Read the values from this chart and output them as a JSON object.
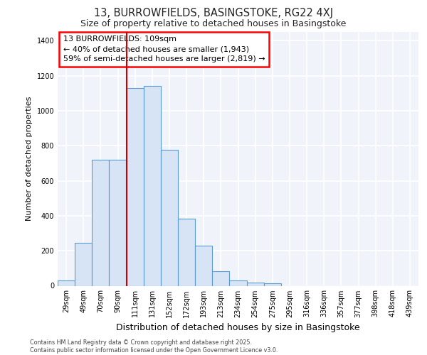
{
  "title1": "13, BURROWFIELDS, BASINGSTOKE, RG22 4XJ",
  "title2": "Size of property relative to detached houses in Basingstoke",
  "xlabel": "Distribution of detached houses by size in Basingstoke",
  "ylabel": "Number of detached properties",
  "categories": [
    "29sqm",
    "49sqm",
    "70sqm",
    "90sqm",
    "111sqm",
    "131sqm",
    "152sqm",
    "172sqm",
    "193sqm",
    "213sqm",
    "234sqm",
    "254sqm",
    "275sqm",
    "295sqm",
    "316sqm",
    "336sqm",
    "357sqm",
    "377sqm",
    "398sqm",
    "418sqm",
    "439sqm"
  ],
  "values": [
    30,
    245,
    720,
    720,
    1130,
    1140,
    775,
    385,
    230,
    85,
    30,
    20,
    15,
    0,
    0,
    0,
    0,
    0,
    0,
    0,
    0
  ],
  "bar_color": "#d6e4f5",
  "bar_edge_color": "#5b9bd5",
  "vline_color": "#cc0000",
  "vline_pos": 4,
  "annotation_text": "13 BURROWFIELDS: 109sqm\n← 40% of detached houses are smaller (1,943)\n59% of semi-detached houses are larger (2,819) →",
  "footer": "Contains HM Land Registry data © Crown copyright and database right 2025.\nContains public sector information licensed under the Open Government Licence v3.0.",
  "ylim": [
    0,
    1450
  ],
  "yticks": [
    0,
    200,
    400,
    600,
    800,
    1000,
    1200,
    1400
  ],
  "bg_color": "#ffffff",
  "plot_bg_color": "#f0f4fa",
  "grid_color": "#d8e4f0"
}
